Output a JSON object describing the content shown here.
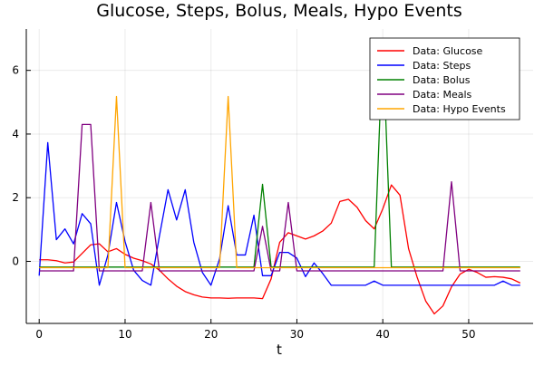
{
  "chart_data": {
    "type": "line",
    "title": "Glucose, Steps, Bolus, Meals, Hypo Events",
    "xlabel": "t",
    "ylabel": "",
    "xlim": [
      -1.5,
      57.5
    ],
    "ylim": [
      -1.95,
      7.3
    ],
    "xticks": [
      0,
      10,
      20,
      30,
      40,
      50
    ],
    "yticks": [
      0,
      2,
      4,
      6
    ],
    "grid": true,
    "legend_position": "top-right",
    "x": [
      0,
      1,
      2,
      3,
      4,
      5,
      6,
      7,
      8,
      9,
      10,
      11,
      12,
      13,
      14,
      15,
      16,
      17,
      18,
      19,
      20,
      21,
      22,
      23,
      24,
      25,
      26,
      27,
      28,
      29,
      30,
      31,
      32,
      33,
      34,
      35,
      36,
      37,
      38,
      39,
      40,
      41,
      42,
      43,
      44,
      45,
      46,
      47,
      48,
      49,
      50,
      51,
      52,
      53,
      54,
      55,
      56
    ],
    "series": [
      {
        "name": "Data: Glucose",
        "color": "#ff0000",
        "values": [
          0.05,
          0.05,
          0.02,
          -0.05,
          -0.02,
          0.25,
          0.52,
          0.55,
          0.3,
          0.4,
          0.22,
          0.1,
          0.02,
          -0.08,
          -0.28,
          -0.55,
          -0.78,
          -0.95,
          -1.05,
          -1.12,
          -1.15,
          -1.15,
          -1.16,
          -1.15,
          -1.15,
          -1.15,
          -1.17,
          -0.55,
          0.6,
          0.9,
          0.8,
          0.7,
          0.8,
          0.95,
          1.2,
          1.88,
          1.95,
          1.7,
          1.28,
          1.02,
          1.65,
          2.4,
          2.08,
          0.4,
          -0.5,
          -1.25,
          -1.65,
          -1.4,
          -0.8,
          -0.4,
          -0.25,
          -0.35,
          -0.5,
          -0.48,
          -0.5,
          -0.55,
          -0.68
        ]
      },
      {
        "name": "Data: Steps",
        "color": "#0000ff",
        "values": [
          -0.45,
          3.73,
          0.68,
          1.02,
          0.55,
          1.5,
          1.18,
          -0.75,
          0.2,
          1.85,
          0.62,
          -0.28,
          -0.6,
          -0.75,
          0.8,
          2.25,
          1.3,
          2.25,
          0.6,
          -0.35,
          -0.75,
          0.08,
          1.75,
          0.2,
          0.2,
          1.45,
          -0.45,
          -0.45,
          0.28,
          0.28,
          0.1,
          -0.48,
          -0.05,
          -0.38,
          -0.75,
          -0.75,
          -0.75,
          -0.75,
          -0.75,
          -0.62,
          -0.75,
          -0.75,
          -0.75,
          -0.75,
          -0.75,
          -0.75,
          -0.75,
          -0.75,
          -0.75,
          -0.75,
          -0.75,
          -0.75,
          -0.75,
          -0.75,
          -0.62,
          -0.75,
          -0.75
        ]
      },
      {
        "name": "Data: Bolus",
        "color": "#008000",
        "values": [
          -0.18,
          -0.18,
          -0.18,
          -0.18,
          -0.18,
          -0.18,
          -0.18,
          -0.18,
          -0.18,
          -0.18,
          -0.18,
          -0.18,
          -0.18,
          -0.18,
          -0.18,
          -0.18,
          -0.18,
          -0.18,
          -0.18,
          -0.18,
          -0.18,
          -0.18,
          -0.18,
          -0.18,
          -0.18,
          -0.18,
          2.42,
          -0.18,
          -0.18,
          -0.18,
          -0.18,
          -0.18,
          -0.18,
          -0.18,
          -0.18,
          -0.18,
          -0.18,
          -0.18,
          -0.18,
          -0.18,
          6.95,
          -0.18,
          -0.18,
          -0.18,
          -0.18,
          -0.18,
          -0.18,
          -0.18,
          -0.18,
          -0.18,
          -0.18,
          -0.18,
          -0.18,
          -0.18,
          -0.18,
          -0.18,
          -0.18
        ]
      },
      {
        "name": "Data: Meals",
        "color": "#800080",
        "values": [
          -0.3,
          -0.3,
          -0.3,
          -0.3,
          -0.3,
          4.3,
          4.3,
          -0.3,
          -0.3,
          -0.3,
          -0.3,
          -0.3,
          -0.3,
          1.85,
          -0.3,
          -0.3,
          -0.3,
          -0.3,
          -0.3,
          -0.3,
          -0.3,
          -0.3,
          -0.3,
          -0.3,
          -0.3,
          -0.3,
          1.1,
          -0.3,
          -0.3,
          1.85,
          -0.3,
          -0.3,
          -0.3,
          -0.3,
          -0.3,
          -0.3,
          -0.3,
          -0.3,
          -0.3,
          -0.3,
          -0.3,
          -0.3,
          -0.3,
          -0.3,
          -0.3,
          -0.3,
          -0.3,
          -0.3,
          2.5,
          -0.3,
          -0.3,
          -0.3,
          -0.3,
          -0.3,
          -0.3,
          -0.3,
          -0.3
        ]
      },
      {
        "name": "Data: Hypo Events",
        "color": "#ffa500",
        "values": [
          -0.2,
          -0.2,
          -0.2,
          -0.2,
          -0.2,
          -0.2,
          -0.2,
          -0.2,
          -0.2,
          5.18,
          -0.2,
          -0.2,
          -0.2,
          -0.2,
          -0.2,
          -0.2,
          -0.2,
          -0.2,
          -0.2,
          -0.2,
          -0.2,
          -0.2,
          5.18,
          -0.2,
          -0.2,
          -0.2,
          -0.2,
          -0.2,
          -0.2,
          -0.2,
          -0.2,
          -0.2,
          -0.2,
          -0.2,
          -0.2,
          -0.2,
          -0.2,
          -0.2,
          -0.2,
          -0.2,
          -0.2,
          -0.2,
          -0.2,
          -0.2,
          -0.2,
          -0.2,
          -0.2,
          -0.2,
          -0.2,
          -0.2,
          -0.2,
          -0.2,
          -0.2,
          -0.2,
          -0.2,
          -0.2,
          -0.2
        ]
      }
    ]
  }
}
